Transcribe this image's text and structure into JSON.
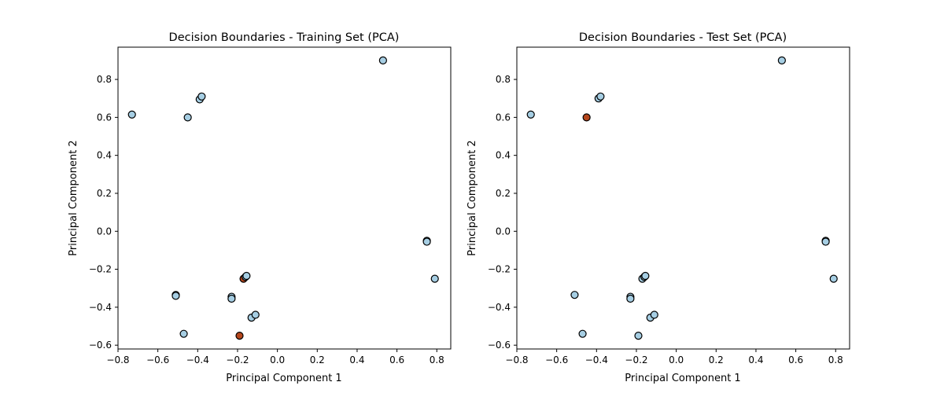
{
  "colors": {
    "class_a": "#a6cee3",
    "class_b": "#b5461c",
    "marker_edge": "#000000",
    "frame": "#000000",
    "background": "#ffffff"
  },
  "chart_data": [
    {
      "type": "scatter",
      "title": "Decision Boundaries - Training Set (PCA)",
      "xlabel": "Principal Component 1",
      "ylabel": "Principal Component 2",
      "xlim": [
        -0.8,
        0.87
      ],
      "ylim": [
        -0.62,
        0.97
      ],
      "xticks": [
        -0.8,
        -0.6,
        -0.4,
        -0.2,
        0.0,
        0.2,
        0.4,
        0.6,
        0.8
      ],
      "yticks": [
        -0.6,
        -0.4,
        -0.2,
        0.0,
        0.2,
        0.4,
        0.6,
        0.8
      ],
      "xtick_labels": [
        "−0.8",
        "−0.6",
        "−0.4",
        "−0.2",
        "0.0",
        "0.2",
        "0.4",
        "0.6",
        "0.8"
      ],
      "ytick_labels": [
        "−0.6",
        "−0.4",
        "−0.2",
        "0.0",
        "0.2",
        "0.4",
        "0.6",
        "0.8"
      ],
      "grid": false,
      "legend": false,
      "points": [
        {
          "x": -0.73,
          "y": 0.615,
          "cls": "a"
        },
        {
          "x": -0.39,
          "y": 0.695,
          "cls": "a"
        },
        {
          "x": -0.38,
          "y": 0.71,
          "cls": "a"
        },
        {
          "x": -0.45,
          "y": 0.6,
          "cls": "a"
        },
        {
          "x": 0.53,
          "y": 0.9,
          "cls": "a"
        },
        {
          "x": 0.75,
          "y": -0.05,
          "cls": "a"
        },
        {
          "x": 0.75,
          "y": -0.055,
          "cls": "a"
        },
        {
          "x": 0.79,
          "y": -0.25,
          "cls": "a"
        },
        {
          "x": -0.51,
          "y": -0.335,
          "cls": "a"
        },
        {
          "x": -0.51,
          "y": -0.34,
          "cls": "a"
        },
        {
          "x": -0.23,
          "y": -0.345,
          "cls": "a"
        },
        {
          "x": -0.23,
          "y": -0.355,
          "cls": "a"
        },
        {
          "x": -0.17,
          "y": -0.25,
          "cls": "b"
        },
        {
          "x": -0.16,
          "y": -0.24,
          "cls": "a"
        },
        {
          "x": -0.155,
          "y": -0.235,
          "cls": "a"
        },
        {
          "x": -0.13,
          "y": -0.455,
          "cls": "a"
        },
        {
          "x": -0.11,
          "y": -0.44,
          "cls": "a"
        },
        {
          "x": -0.47,
          "y": -0.54,
          "cls": "a"
        },
        {
          "x": -0.19,
          "y": -0.55,
          "cls": "b"
        }
      ]
    },
    {
      "type": "scatter",
      "title": "Decision Boundaries - Test Set (PCA)",
      "xlabel": "Principal Component 1",
      "ylabel": "Principal Component 2",
      "xlim": [
        -0.8,
        0.87
      ],
      "ylim": [
        -0.62,
        0.97
      ],
      "xticks": [
        -0.8,
        -0.6,
        -0.4,
        -0.2,
        0.0,
        0.2,
        0.4,
        0.6,
        0.8
      ],
      "yticks": [
        -0.6,
        -0.4,
        -0.2,
        0.0,
        0.2,
        0.4,
        0.6,
        0.8
      ],
      "xtick_labels": [
        "−0.8",
        "−0.6",
        "−0.4",
        "−0.2",
        "0.0",
        "0.2",
        "0.4",
        "0.6",
        "0.8"
      ],
      "ytick_labels": [
        "−0.6",
        "−0.4",
        "−0.2",
        "0.0",
        "0.2",
        "0.4",
        "0.6",
        "0.8"
      ],
      "grid": false,
      "legend": false,
      "points": [
        {
          "x": -0.73,
          "y": 0.615,
          "cls": "a"
        },
        {
          "x": -0.39,
          "y": 0.7,
          "cls": "a"
        },
        {
          "x": -0.38,
          "y": 0.71,
          "cls": "a"
        },
        {
          "x": -0.45,
          "y": 0.6,
          "cls": "b"
        },
        {
          "x": 0.53,
          "y": 0.9,
          "cls": "a"
        },
        {
          "x": 0.75,
          "y": -0.05,
          "cls": "a"
        },
        {
          "x": 0.75,
          "y": -0.055,
          "cls": "a"
        },
        {
          "x": 0.79,
          "y": -0.25,
          "cls": "a"
        },
        {
          "x": -0.51,
          "y": -0.335,
          "cls": "a"
        },
        {
          "x": -0.23,
          "y": -0.345,
          "cls": "a"
        },
        {
          "x": -0.23,
          "y": -0.355,
          "cls": "a"
        },
        {
          "x": -0.17,
          "y": -0.25,
          "cls": "a"
        },
        {
          "x": -0.16,
          "y": -0.24,
          "cls": "a"
        },
        {
          "x": -0.155,
          "y": -0.235,
          "cls": "a"
        },
        {
          "x": -0.13,
          "y": -0.455,
          "cls": "a"
        },
        {
          "x": -0.11,
          "y": -0.44,
          "cls": "a"
        },
        {
          "x": -0.47,
          "y": -0.54,
          "cls": "a"
        },
        {
          "x": -0.19,
          "y": -0.55,
          "cls": "a"
        }
      ]
    }
  ]
}
